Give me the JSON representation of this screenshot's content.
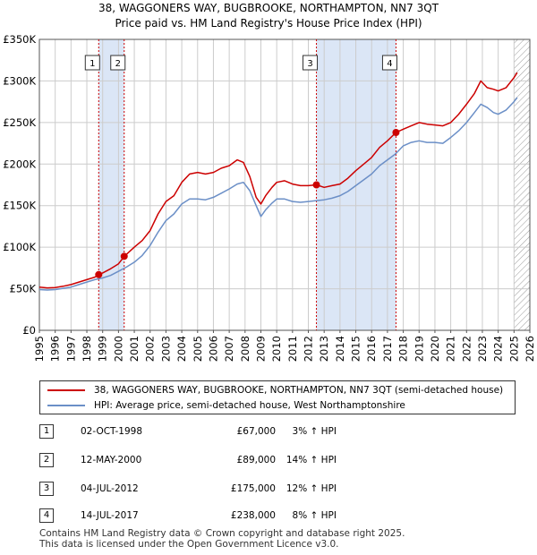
{
  "chart_data": {
    "type": "line",
    "title": "38, WAGGONERS WAY, BUGBROOKE, NORTHAMPTON, NN7 3QT",
    "subtitle": "Price paid vs. HM Land Registry's House Price Index (HPI)",
    "xlabel": "",
    "ylabel": "",
    "xlim": [
      1995,
      2026
    ],
    "ylim": [
      0,
      350000
    ],
    "y_ticks": [
      0,
      50000,
      100000,
      150000,
      200000,
      250000,
      300000,
      350000
    ],
    "y_tick_labels": [
      "£0",
      "£50K",
      "£100K",
      "£150K",
      "£200K",
      "£250K",
      "£300K",
      "£350K"
    ],
    "x_ticks": [
      1995,
      1996,
      1997,
      1998,
      1999,
      2000,
      2001,
      2002,
      2003,
      2004,
      2005,
      2006,
      2007,
      2008,
      2009,
      2010,
      2011,
      2012,
      2013,
      2014,
      2015,
      2016,
      2017,
      2018,
      2019,
      2020,
      2021,
      2022,
      2023,
      2024,
      2025,
      2026
    ],
    "grid": true,
    "series": [
      {
        "name": "38, WAGGONERS WAY, BUGBROOKE, NORTHAMPTON, NN7 3QT (semi-detached house)",
        "color": "#cc0000",
        "x": [
          1995.0,
          1995.5,
          1996.0,
          1996.5,
          1997.0,
          1997.5,
          1998.0,
          1998.5,
          1998.75,
          1999.0,
          1999.5,
          2000.0,
          2000.36,
          2000.6,
          2001.0,
          2001.5,
          2002.0,
          2002.5,
          2003.0,
          2003.5,
          2004.0,
          2004.5,
          2005.0,
          2005.5,
          2006.0,
          2006.5,
          2007.0,
          2007.5,
          2007.9,
          2008.3,
          2008.7,
          2009.0,
          2009.3,
          2009.7,
          2010.0,
          2010.5,
          2011.0,
          2011.5,
          2012.0,
          2012.51,
          2013.0,
          2013.5,
          2014.0,
          2014.5,
          2015.0,
          2015.5,
          2016.0,
          2016.5,
          2017.0,
          2017.54,
          2018.0,
          2018.5,
          2019.0,
          2019.5,
          2020.0,
          2020.5,
          2021.0,
          2021.5,
          2022.0,
          2022.5,
          2022.9,
          2023.3,
          2023.7,
          2024.0,
          2024.5,
          2025.0,
          2025.2
        ],
        "values": [
          52000,
          51000,
          51500,
          53000,
          55000,
          58000,
          61000,
          64000,
          67000,
          69000,
          74000,
          80000,
          89000,
          93000,
          100000,
          108000,
          120000,
          140000,
          155000,
          162000,
          178000,
          188000,
          190000,
          188000,
          190000,
          195000,
          198000,
          205000,
          202000,
          185000,
          160000,
          152000,
          162000,
          172000,
          178000,
          180000,
          176000,
          174000,
          174000,
          175000,
          172000,
          174000,
          176000,
          183000,
          192000,
          200000,
          208000,
          220000,
          228000,
          238000,
          242000,
          246000,
          250000,
          248000,
          247000,
          246000,
          250000,
          260000,
          272000,
          285000,
          300000,
          292000,
          290000,
          288000,
          292000,
          304000,
          310000
        ]
      },
      {
        "name": "HPI: Average price, semi-detached house, West Northamptonshire",
        "color": "#6b8fc7",
        "x": [
          1995.0,
          1995.5,
          1996.0,
          1996.5,
          1997.0,
          1997.5,
          1998.0,
          1998.5,
          1999.0,
          1999.5,
          2000.0,
          2000.5,
          2001.0,
          2001.5,
          2002.0,
          2002.5,
          2003.0,
          2003.5,
          2004.0,
          2004.5,
          2005.0,
          2005.5,
          2006.0,
          2006.5,
          2007.0,
          2007.5,
          2007.9,
          2008.3,
          2008.7,
          2009.0,
          2009.3,
          2009.7,
          2010.0,
          2010.5,
          2011.0,
          2011.5,
          2012.0,
          2012.5,
          2013.0,
          2013.5,
          2014.0,
          2014.5,
          2015.0,
          2015.5,
          2016.0,
          2016.5,
          2017.0,
          2017.5,
          2018.0,
          2018.5,
          2019.0,
          2019.5,
          2020.0,
          2020.5,
          2021.0,
          2021.5,
          2022.0,
          2022.5,
          2022.9,
          2023.3,
          2023.7,
          2024.0,
          2024.5,
          2025.0,
          2025.2
        ],
        "values": [
          49000,
          48500,
          49000,
          50500,
          52000,
          55000,
          58000,
          61000,
          63000,
          66000,
          71000,
          76000,
          82000,
          90000,
          102000,
          118000,
          132000,
          140000,
          152000,
          158000,
          158000,
          157000,
          160000,
          165000,
          170000,
          176000,
          178000,
          168000,
          150000,
          137000,
          145000,
          153000,
          158000,
          158000,
          155000,
          154000,
          155000,
          156000,
          157000,
          159000,
          162000,
          167000,
          174000,
          181000,
          188000,
          198000,
          205000,
          212000,
          222000,
          226000,
          228000,
          226000,
          226000,
          225000,
          232000,
          240000,
          250000,
          262000,
          272000,
          268000,
          262000,
          260000,
          265000,
          275000,
          280000
        ]
      }
    ],
    "sales": [
      {
        "id": "1",
        "date": "02-OCT-1998",
        "price": "£67,000",
        "hpi": "3% ↑ HPI",
        "x": 1998.75,
        "value": 67000
      },
      {
        "id": "2",
        "date": "12-MAY-2000",
        "price": "£89,000",
        "hpi": "14% ↑ HPI",
        "x": 2000.36,
        "value": 89000
      },
      {
        "id": "3",
        "date": "04-JUL-2012",
        "price": "£175,000",
        "hpi": "12% ↑ HPI",
        "x": 2012.51,
        "value": 175000
      },
      {
        "id": "4",
        "date": "14-JUL-2017",
        "price": "£238,000",
        "hpi": "8% ↑ HPI",
        "x": 2017.54,
        "value": 238000
      }
    ],
    "shaded_periods": [
      [
        1998.75,
        2000.36
      ],
      [
        2012.51,
        2017.54
      ]
    ],
    "forecast_from": 2025.0
  },
  "legend": {
    "property_label": "38, WAGGONERS WAY, BUGBROOKE, NORTHAMPTON, NN7 3QT (semi-detached house)",
    "hpi_label": "HPI: Average price, semi-detached house, West Northamptonshire"
  },
  "footer": {
    "line1": "Contains HM Land Registry data © Crown copyright and database right 2025.",
    "line2": "This data is licensed under the Open Government Licence v3.0."
  },
  "colors": {
    "property": "#cc0000",
    "hpi": "#6b8fc7",
    "shade": "#dbe6f6",
    "grid": "#cccccc"
  }
}
